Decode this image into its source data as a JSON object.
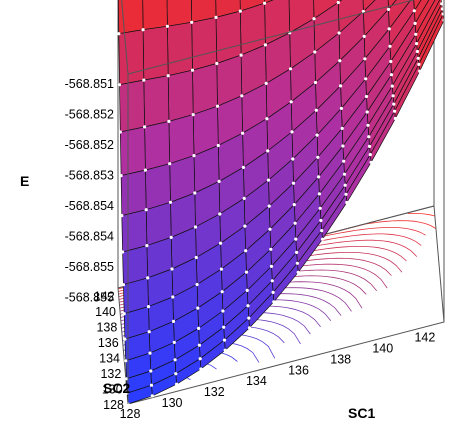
{
  "chart_data": {
    "type": "surface",
    "title": "",
    "xlabel": "SC1",
    "ylabel": "SC2",
    "zlabel": "E",
    "x_ticks": [
      "128",
      "130",
      "132",
      "134",
      "136",
      "138",
      "140",
      "142"
    ],
    "y_ticks": [
      "128",
      "130",
      "132",
      "134",
      "136",
      "138",
      "140",
      "142"
    ],
    "z_ticks": [
      "-568.851",
      "-568.852",
      "-568.852",
      "-568.853",
      "-568.854",
      "-568.854",
      "-568.855",
      "-568.855"
    ],
    "xlim": [
      128,
      143
    ],
    "ylim": [
      128,
      143
    ],
    "zlim": [
      -568.8555,
      -568.8508
    ],
    "grid_points_per_axis": 14,
    "surface": {
      "minimum": {
        "x": 128,
        "y": 128,
        "z": -568.8555
      },
      "corner_x_max_y_min": -568.8512,
      "corner_x_min_y_max": -568.8511,
      "corner_x_max_y_max": -568.8508
    },
    "colormap": {
      "low": "#2a3cff",
      "mid": "#b030a0",
      "high": "#ff2a10"
    },
    "contour_colormap": {
      "low": "#3040ff",
      "high": "#ff3020"
    },
    "box": true,
    "contours_on_floor": true,
    "grid": false,
    "legend": "none"
  }
}
